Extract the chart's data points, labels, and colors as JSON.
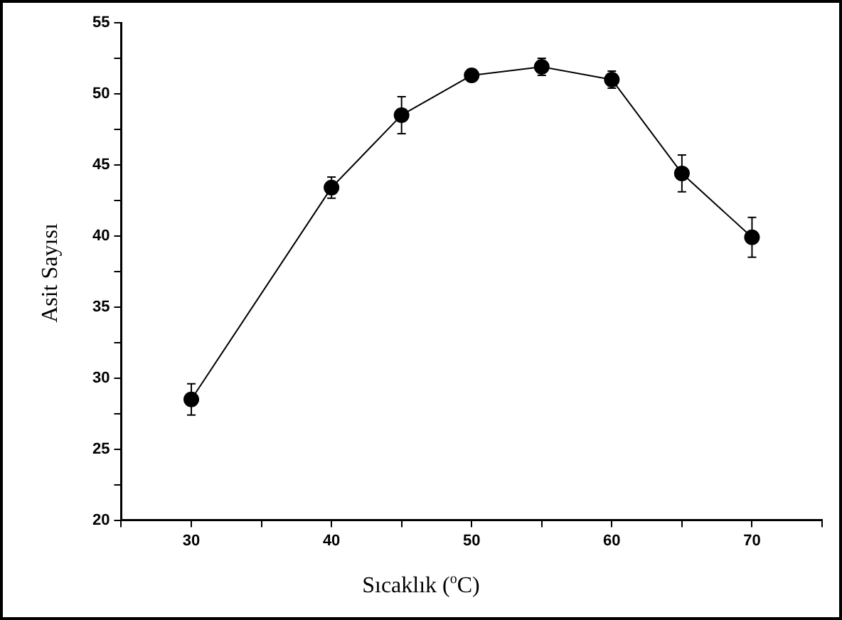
{
  "chart_data": {
    "type": "line",
    "xlabel": "Sıcaklık ($^{o}$C)",
    "ylabel": "Asit Sayısı",
    "x": [
      30,
      40,
      45,
      50,
      55,
      60,
      65,
      70
    ],
    "series": [
      {
        "color": "#000000",
        "values": [
          28.5,
          43.4,
          48.5,
          51.3,
          51.9,
          51.0,
          44.4,
          39.9
        ],
        "errors": [
          1.1,
          0.75,
          1.3,
          null,
          0.6,
          0.6,
          1.3,
          1.4
        ]
      }
    ],
    "xlim": [
      25,
      75
    ],
    "xticks": [
      {
        "value": 25,
        "label": null
      },
      30,
      {
        "value": 35,
        "label": null
      },
      40,
      {
        "value": 45,
        "label": null
      },
      50,
      {
        "value": 55,
        "label": null
      },
      60,
      {
        "value": 65,
        "label": null
      },
      70,
      {
        "value": 75,
        "label": null
      }
    ],
    "ylim": [
      20,
      55
    ],
    "yticks": [
      20,
      {
        "value": 22.5,
        "label": null
      },
      25,
      {
        "value": 27.5,
        "label": null
      },
      30,
      {
        "value": 32.5,
        "label": null
      },
      35,
      {
        "value": 37.5,
        "label": null
      },
      40,
      {
        "value": 42.5,
        "label": null
      },
      45,
      {
        "value": 47.5,
        "label": null
      },
      50,
      {
        "value": 52.5,
        "label": null
      },
      55
    ],
    "grid": false,
    "legend": false,
    "marker": "circle",
    "line_style": "solid"
  }
}
